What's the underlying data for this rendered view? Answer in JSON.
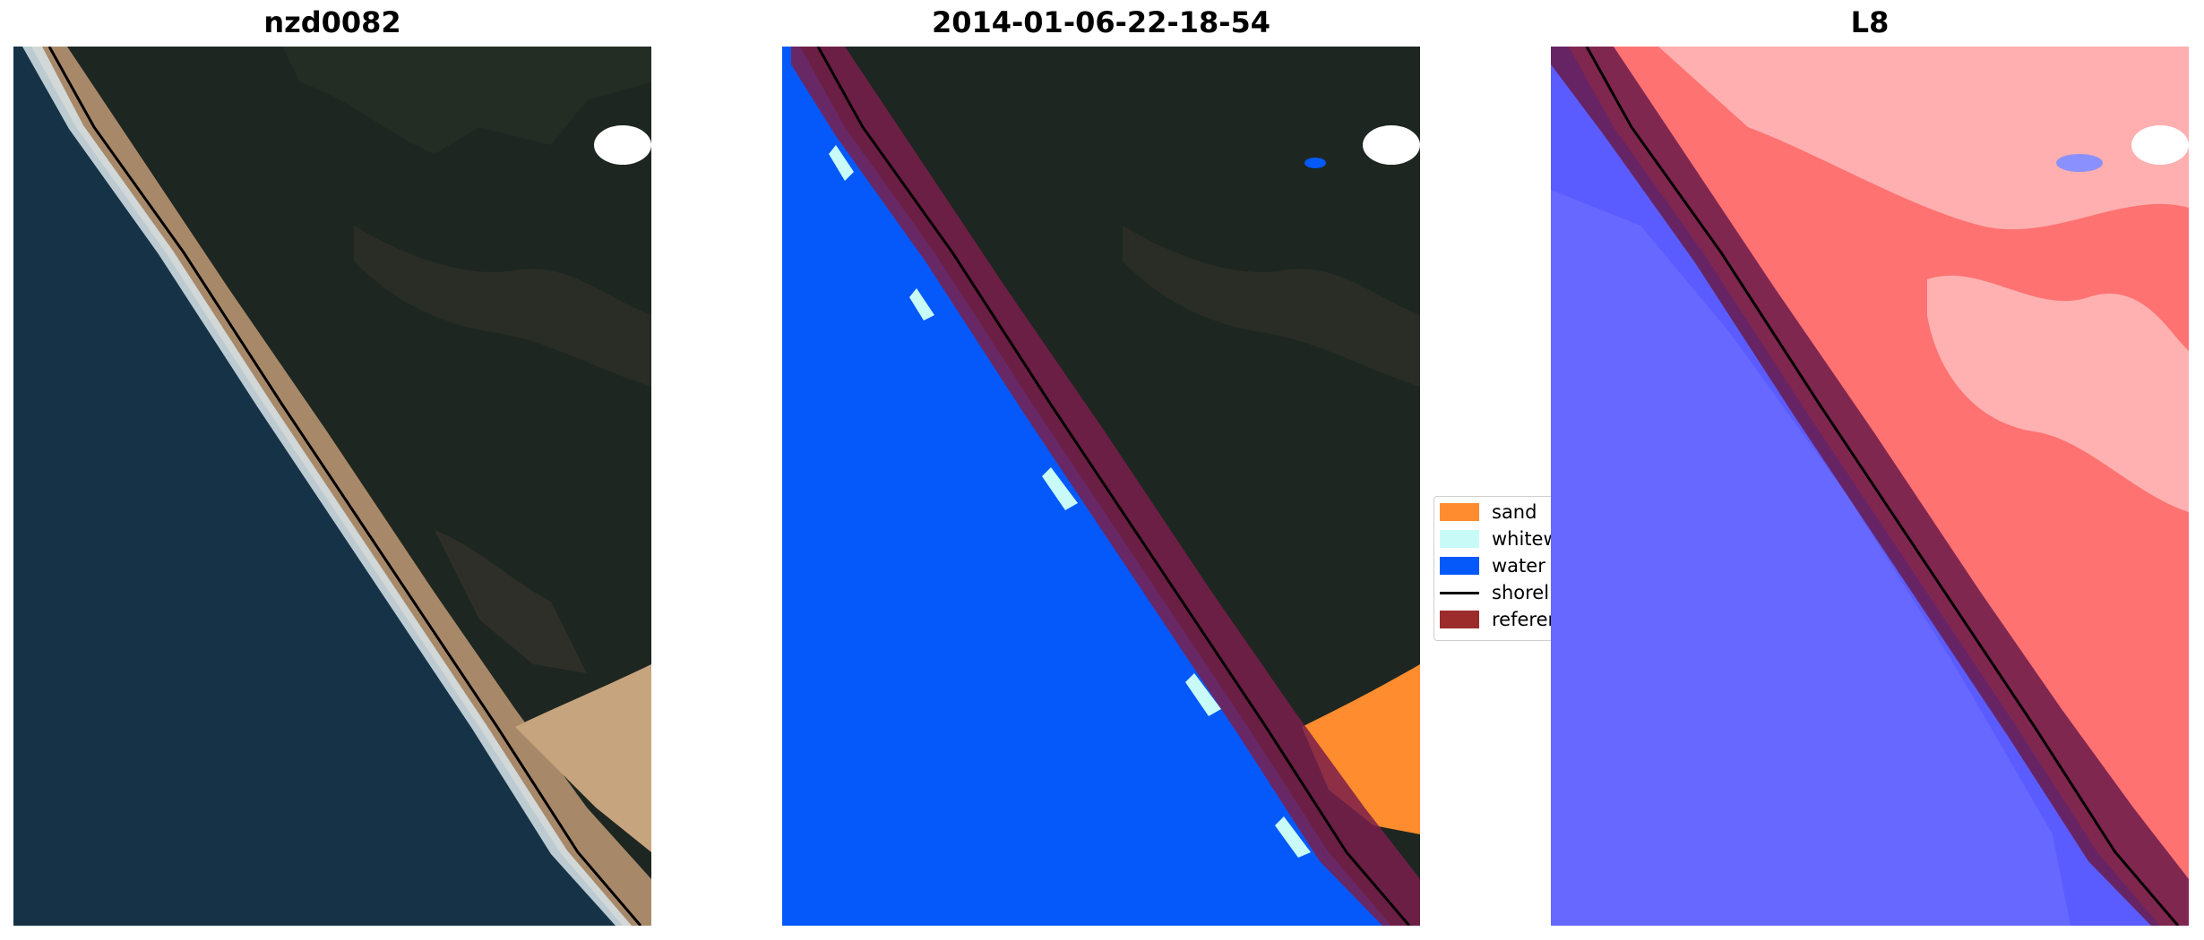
{
  "panels": [
    {
      "title": "nzd0082"
    },
    {
      "title": "2014-01-06-22-18-54"
    },
    {
      "title": "L8"
    }
  ],
  "legend": {
    "items": [
      {
        "label": "sand",
        "color": "#ff8c2e",
        "kind": "patch"
      },
      {
        "label": "whitew",
        "color": "#c8fbf8",
        "kind": "patch"
      },
      {
        "label": "water",
        "color": "#0559fb",
        "kind": "patch"
      },
      {
        "label": "shorel",
        "color": "#000000",
        "kind": "line"
      },
      {
        "label": "referen",
        "color": "#9c2b2b",
        "kind": "patch"
      }
    ]
  },
  "colors": {
    "land": "#1e2621",
    "ocean": "#163246",
    "surf": "#d9e6ea",
    "beach": "#a7896a",
    "water_class": "#0559fb",
    "reference_band": "#7a1e4a",
    "index_land": "#ff7272",
    "index_water": "#5a5cff"
  }
}
